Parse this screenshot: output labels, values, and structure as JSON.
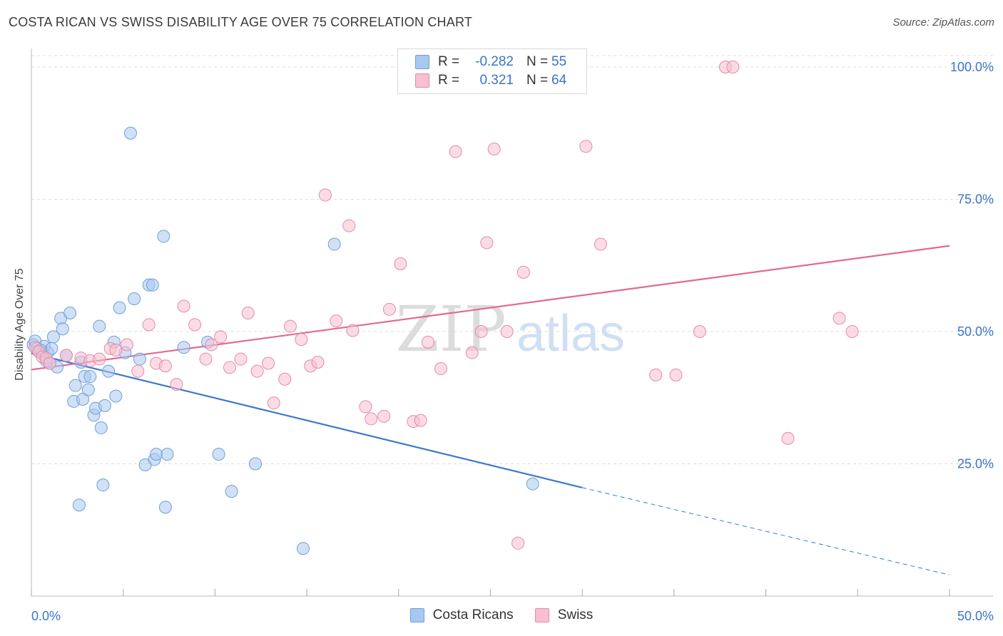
{
  "header": {
    "title": "COSTA RICAN VS SWISS DISABILITY AGE OVER 75 CORRELATION CHART",
    "source": "Source: ZipAtlas.com"
  },
  "legend": {
    "rows": [
      {
        "r_label": "R =",
        "r_value": "-0.282",
        "n_label": "N =",
        "n_value": "55",
        "color": "#a9c8ef",
        "border": "#6f9fdb"
      },
      {
        "r_label": "R =",
        "r_value": "0.321",
        "n_label": "N =",
        "n_value": "64",
        "color": "#f7bfd0",
        "border": "#e68aa8"
      }
    ]
  },
  "bottom_legend": {
    "items": [
      {
        "label": "Costa Ricans",
        "color": "#a9c8ef",
        "border": "#6f9fdb"
      },
      {
        "label": "Swiss",
        "color": "#f7bfd0",
        "border": "#e68aa8"
      }
    ]
  },
  "watermark": {
    "zip": "ZIP",
    "atlas": "atlas"
  },
  "chart_data": {
    "type": "scatter",
    "title": "COSTA RICAN VS SWISS DISABILITY AGE OVER 75 CORRELATION CHART",
    "xlabel": "",
    "ylabel": "Disability Age Over 75",
    "xlim": [
      0,
      50
    ],
    "ylim": [
      0,
      103.5
    ],
    "x_tick_labels": [
      "0.0%",
      "50.0%"
    ],
    "y_ticks": [
      25,
      50,
      75,
      100
    ],
    "y_tick_labels": [
      "25.0%",
      "50.0%",
      "75.0%",
      "100.0%"
    ],
    "grid": true,
    "legend_position": "top-center",
    "series": [
      {
        "name": "Costa Ricans",
        "color": "#6f9fdb",
        "fill": "#a9c8ef",
        "points": [
          [
            0.1,
            47.5
          ],
          [
            0.2,
            48.2
          ],
          [
            0.3,
            46.8
          ],
          [
            0.4,
            46.2
          ],
          [
            0.6,
            45.8
          ],
          [
            0.7,
            47.2
          ],
          [
            0.8,
            44.5
          ],
          [
            0.9,
            46.0
          ],
          [
            1.1,
            46.8
          ],
          [
            1.2,
            49.0
          ],
          [
            1.4,
            43.3
          ],
          [
            1.6,
            52.5
          ],
          [
            1.7,
            50.5
          ],
          [
            1.9,
            45.5
          ],
          [
            2.1,
            53.5
          ],
          [
            2.3,
            36.8
          ],
          [
            2.4,
            39.8
          ],
          [
            2.6,
            17.2
          ],
          [
            2.7,
            44.2
          ],
          [
            2.8,
            37.2
          ],
          [
            2.9,
            41.5
          ],
          [
            3.1,
            39.0
          ],
          [
            3.2,
            41.5
          ],
          [
            3.4,
            34.2
          ],
          [
            3.5,
            35.5
          ],
          [
            3.7,
            51.0
          ],
          [
            3.8,
            31.8
          ],
          [
            3.9,
            21.0
          ],
          [
            4.0,
            36.0
          ],
          [
            4.2,
            42.5
          ],
          [
            4.5,
            48.0
          ],
          [
            4.6,
            37.8
          ],
          [
            4.8,
            54.5
          ],
          [
            5.1,
            46.0
          ],
          [
            5.4,
            87.5
          ],
          [
            5.6,
            56.2
          ],
          [
            5.9,
            44.8
          ],
          [
            6.2,
            24.8
          ],
          [
            6.4,
            58.8
          ],
          [
            6.6,
            58.8
          ],
          [
            6.7,
            25.8
          ],
          [
            6.8,
            26.8
          ],
          [
            7.2,
            68.0
          ],
          [
            7.3,
            16.8
          ],
          [
            7.4,
            26.8
          ],
          [
            8.3,
            47.0
          ],
          [
            9.6,
            48.0
          ],
          [
            10.2,
            26.8
          ],
          [
            10.9,
            19.8
          ],
          [
            12.2,
            25.0
          ],
          [
            14.8,
            9.0
          ],
          [
            16.5,
            66.5
          ],
          [
            27.3,
            21.2
          ],
          [
            0.5,
            46.5
          ],
          [
            1.0,
            44.0
          ]
        ],
        "trend": {
          "x0": 0,
          "y0": 45.9,
          "x1": 30,
          "y1": 20.5,
          "dashed_to_x": 50,
          "dashed_to_y": 4.0
        }
      },
      {
        "name": "Swiss",
        "color": "#e68aa8",
        "fill": "#f7bfd0",
        "points": [
          [
            0.2,
            47.0
          ],
          [
            0.4,
            46.2
          ],
          [
            0.6,
            45.2
          ],
          [
            0.8,
            45.0
          ],
          [
            1.0,
            44.0
          ],
          [
            1.9,
            45.5
          ],
          [
            2.7,
            45.0
          ],
          [
            3.2,
            44.5
          ],
          [
            3.7,
            44.8
          ],
          [
            4.3,
            46.8
          ],
          [
            4.6,
            46.5
          ],
          [
            5.2,
            47.5
          ],
          [
            5.8,
            42.5
          ],
          [
            6.4,
            51.3
          ],
          [
            6.8,
            44.0
          ],
          [
            7.3,
            43.5
          ],
          [
            7.9,
            40.0
          ],
          [
            8.3,
            54.8
          ],
          [
            8.9,
            51.3
          ],
          [
            9.5,
            44.8
          ],
          [
            9.8,
            47.5
          ],
          [
            10.3,
            49.0
          ],
          [
            10.8,
            43.2
          ],
          [
            11.4,
            44.8
          ],
          [
            11.8,
            53.5
          ],
          [
            12.3,
            42.5
          ],
          [
            12.9,
            44.0
          ],
          [
            13.2,
            36.5
          ],
          [
            13.8,
            41.0
          ],
          [
            14.1,
            51.0
          ],
          [
            14.7,
            48.5
          ],
          [
            15.2,
            43.5
          ],
          [
            15.6,
            44.2
          ],
          [
            16.0,
            75.8
          ],
          [
            16.6,
            52.0
          ],
          [
            17.3,
            70.0
          ],
          [
            17.5,
            50.2
          ],
          [
            18.2,
            35.8
          ],
          [
            18.5,
            33.5
          ],
          [
            19.2,
            34.0
          ],
          [
            19.5,
            54.2
          ],
          [
            20.1,
            62.8
          ],
          [
            20.8,
            33.0
          ],
          [
            21.2,
            33.2
          ],
          [
            21.6,
            48.0
          ],
          [
            22.3,
            43.0
          ],
          [
            23.1,
            84.0
          ],
          [
            24.0,
            46.0
          ],
          [
            24.5,
            50.0
          ],
          [
            24.8,
            66.8
          ],
          [
            25.2,
            84.5
          ],
          [
            25.9,
            50.0
          ],
          [
            26.5,
            10.0
          ],
          [
            26.8,
            61.2
          ],
          [
            30.2,
            85.0
          ],
          [
            31.0,
            66.5
          ],
          [
            34.0,
            41.8
          ],
          [
            35.1,
            41.8
          ],
          [
            36.4,
            50.0
          ],
          [
            37.8,
            100.0
          ],
          [
            38.2,
            100.0
          ],
          [
            41.2,
            29.8
          ],
          [
            44.0,
            52.5
          ],
          [
            44.7,
            50.0
          ]
        ],
        "trend": {
          "x0": 0,
          "y0": 42.8,
          "x1": 50,
          "y1": 66.2
        }
      }
    ]
  }
}
